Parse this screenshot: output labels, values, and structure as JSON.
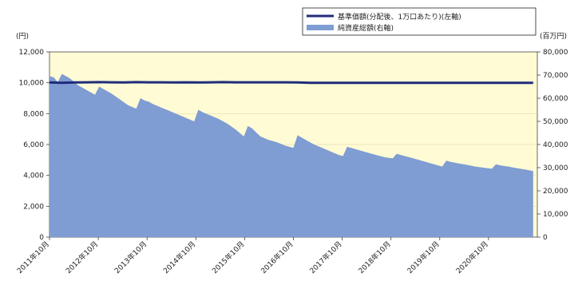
{
  "chart_data": {
    "type": "area",
    "left_unit": "(円)",
    "right_unit": "(百万円)",
    "x_ticks": [
      "2011年10月",
      "2012年10月",
      "2013年10月",
      "2014年10月",
      "2015年10月",
      "2016年10月",
      "2017年10月",
      "2018年10月",
      "2019年10月",
      "2020年10月"
    ],
    "y_left_ticks": [
      "12,000",
      "10,000",
      "8,000",
      "6,000",
      "4,000",
      "2,000",
      "0"
    ],
    "y_right_ticks": [
      "80,000",
      "70,000",
      "60,000",
      "50,000",
      "40,000",
      "30,000",
      "20,000",
      "10,000",
      "0"
    ],
    "ylim_left": [
      0,
      12000
    ],
    "ylim_right": [
      0,
      80000
    ],
    "legend": {
      "nav_label": "基準価額(分配後、1万口あたり)(左軸)",
      "assets_label": "純資産総額(右軸)"
    },
    "colors": {
      "plot_bg": "#FFFBD5",
      "area": "#7F9DD2",
      "line": "#1F2C7C"
    },
    "series": [
      {
        "name": "純資産総額(右軸)",
        "axis": "right",
        "x": [
          "2011-10",
          "2011-11",
          "2011-12",
          "2012-01",
          "2012-02",
          "2012-03",
          "2012-04",
          "2012-05",
          "2012-06",
          "2012-07",
          "2012-08",
          "2012-09",
          "2012-10",
          "2012-11",
          "2013-01",
          "2013-03",
          "2013-05",
          "2013-07",
          "2013-08",
          "2013-09",
          "2013-10",
          "2013-11",
          "2014-01",
          "2014-03",
          "2014-05",
          "2014-07",
          "2014-09",
          "2014-10",
          "2014-11",
          "2015-01",
          "2015-03",
          "2015-05",
          "2015-07",
          "2015-09",
          "2015-10",
          "2015-11",
          "2016-01",
          "2016-03",
          "2016-05",
          "2016-07",
          "2016-09",
          "2016-10",
          "2016-12",
          "2017-02",
          "2017-04",
          "2017-06",
          "2017-08",
          "2017-09",
          "2017-10",
          "2017-11",
          "2018-01",
          "2018-03",
          "2018-05",
          "2018-07",
          "2018-09",
          "2018-10",
          "2018-11",
          "2019-01",
          "2019-03",
          "2019-05",
          "2019-07",
          "2019-09",
          "2019-10",
          "2019-11",
          "2020-01",
          "2020-03",
          "2020-05",
          "2020-07",
          "2020-09",
          "2020-10",
          "2020-11",
          "2021-01",
          "2021-03",
          "2021-05",
          "2021-07"
        ],
        "values": [
          69500,
          69000,
          67000,
          70500,
          69500,
          68500,
          67000,
          65500,
          64500,
          63500,
          62500,
          61500,
          65000,
          64000,
          62000,
          59500,
          57000,
          55500,
          60000,
          59000,
          58500,
          57500,
          56000,
          54500,
          53000,
          51500,
          50000,
          55000,
          54000,
          52500,
          51000,
          49000,
          46500,
          43500,
          48000,
          47000,
          43500,
          42000,
          41000,
          39500,
          38500,
          44000,
          42000,
          40000,
          38500,
          37000,
          35500,
          35000,
          39000,
          38500,
          37500,
          36500,
          35500,
          34500,
          34000,
          36000,
          35500,
          34500,
          33500,
          32500,
          31500,
          30500,
          33000,
          32500,
          31800,
          31200,
          30500,
          30000,
          29500,
          31500,
          31000,
          30500,
          29800,
          29200,
          28500
        ]
      },
      {
        "name": "基準価額(分配後、1万口あたり)(左軸)",
        "axis": "left",
        "x": [
          "2011-10",
          "2012-01",
          "2012-04",
          "2012-07",
          "2012-10",
          "2013-01",
          "2013-04",
          "2013-07",
          "2013-10",
          "2014-01",
          "2014-04",
          "2014-07",
          "2014-10",
          "2015-01",
          "2015-04",
          "2015-07",
          "2015-10",
          "2016-01",
          "2016-04",
          "2016-07",
          "2016-10",
          "2017-01",
          "2017-04",
          "2017-07",
          "2017-10",
          "2018-01",
          "2018-04",
          "2018-07",
          "2018-10",
          "2019-01",
          "2019-04",
          "2019-07",
          "2019-10",
          "2020-01",
          "2020-04",
          "2020-07",
          "2020-10",
          "2021-01",
          "2021-04",
          "2021-07"
        ],
        "values": [
          10020,
          10000,
          10020,
          10030,
          10040,
          10030,
          10020,
          10040,
          10030,
          10030,
          10020,
          10030,
          10020,
          10030,
          10040,
          10030,
          10030,
          10030,
          10030,
          10030,
          10020,
          10000,
          10000,
          10000,
          10000,
          10000,
          10000,
          10000,
          10000,
          10000,
          10000,
          10000,
          10000,
          10000,
          10000,
          10000,
          10000,
          10000,
          10000,
          10000
        ]
      }
    ]
  }
}
